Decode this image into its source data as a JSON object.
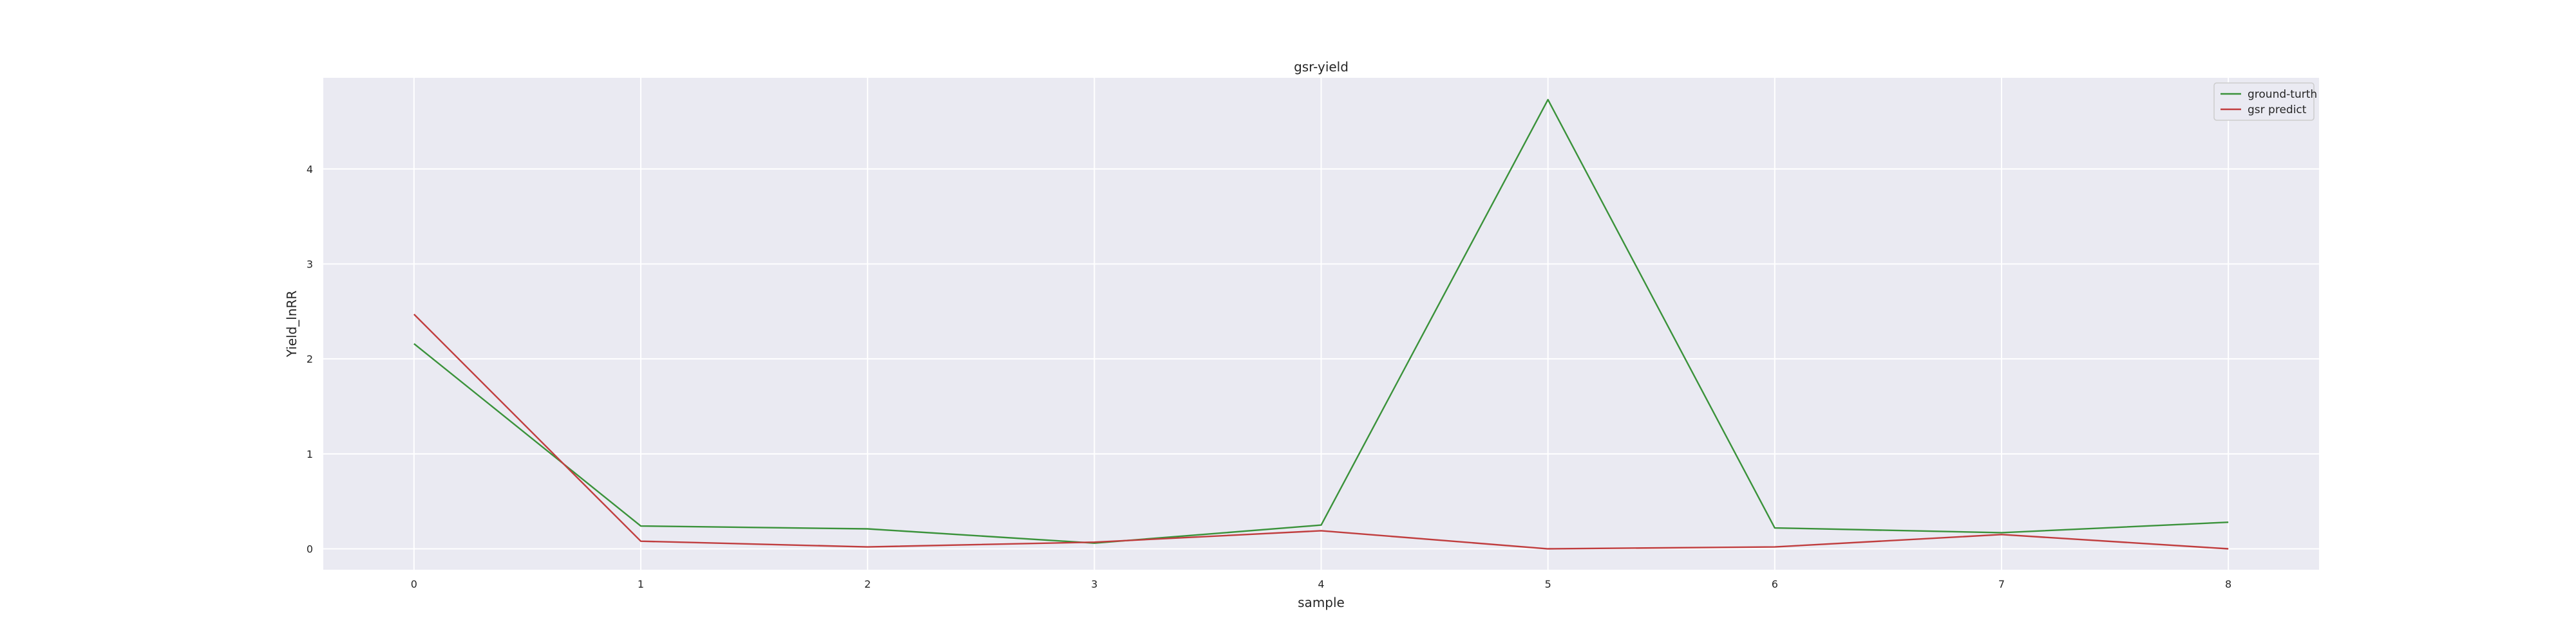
{
  "chart_data": {
    "type": "line",
    "title": "gsr-yield",
    "xlabel": "sample",
    "ylabel": "Yield_lnRR",
    "x": [
      0,
      1,
      2,
      3,
      4,
      5,
      6,
      7,
      8
    ],
    "xticks": [
      "0",
      "1",
      "2",
      "3",
      "4",
      "5",
      "6",
      "7",
      "8"
    ],
    "yticks": [
      "0",
      "1",
      "2",
      "3",
      "4"
    ],
    "xlim": [
      -0.4,
      8.4
    ],
    "ylim": [
      -0.22,
      4.96
    ],
    "grid": true,
    "legend_position": "top-right",
    "series": [
      {
        "name": "ground-turth",
        "color": "#3a923a",
        "values": [
          2.16,
          0.24,
          0.21,
          0.06,
          0.25,
          4.73,
          0.22,
          0.17,
          0.28
        ]
      },
      {
        "name": "gsr predict",
        "color": "#c03d3e",
        "values": [
          2.47,
          0.08,
          0.02,
          0.07,
          0.19,
          0.0,
          0.02,
          0.15,
          0.0
        ]
      }
    ],
    "colors": {
      "plot_background": "#eaeaf2",
      "grid": "#ffffff",
      "text": "#262626"
    }
  }
}
